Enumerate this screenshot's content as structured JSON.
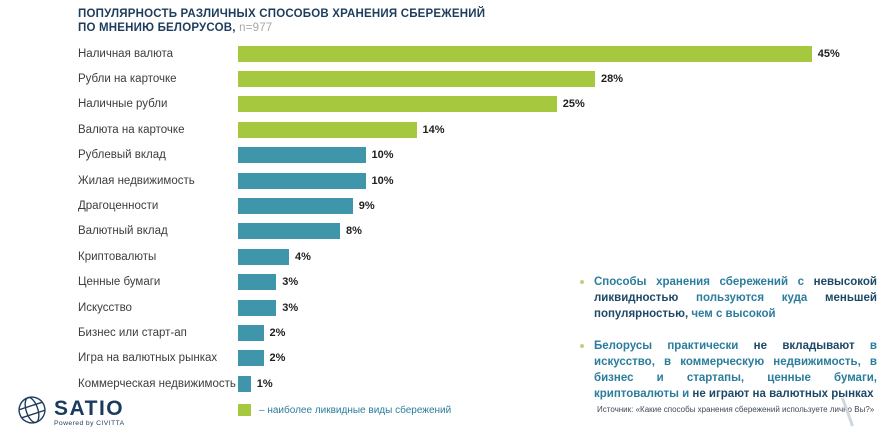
{
  "title": {
    "line1": "ПОПУЛЯРНОСТЬ РАЗЛИЧНЫХ СПОСОБОВ ХРАНЕНИЯ СБЕРЕЖЕНИЙ",
    "line2": "ПО МНЕНИЮ БЕЛОРУСОВ,",
    "sample": "n=977"
  },
  "chart_data": {
    "type": "bar",
    "orientation": "horizontal",
    "categories": [
      "Наличная валюта",
      "Рубли на карточке",
      "Наличные рубли",
      "Валюта на карточке",
      "Рублевый вклад",
      "Жилая недвижимость",
      "Драгоценности",
      "Валютный вклад",
      "Криптовалюты",
      "Ценные бумаги",
      "Искусство",
      "Бизнес или старт-ап",
      "Игра на валютных рынках",
      "Коммерческая недвижимость"
    ],
    "values": [
      45,
      28,
      25,
      14,
      10,
      10,
      9,
      8,
      4,
      3,
      3,
      2,
      2,
      1
    ],
    "value_suffix": "%",
    "xlim": [
      0,
      50
    ],
    "grid": false,
    "highlight_count": 4,
    "highlight_color": "#a6c83e",
    "base_color": "#3f96ab",
    "legend": "– наиболее ликвидные виды сбережений",
    "legend_position": "bottom-left"
  },
  "insights": [
    {
      "runs": [
        {
          "text": "Способы хранения сбережений с ",
          "emph": false
        },
        {
          "text": "невысокой ликвидностью",
          "emph": true
        },
        {
          "text": " пользуются куда ",
          "emph": false
        },
        {
          "text": "меньшей популярностью,",
          "emph": true
        },
        {
          "text": " чем с высокой",
          "emph": false
        }
      ]
    },
    {
      "runs": [
        {
          "text": "Белорусы практически ",
          "emph": false
        },
        {
          "text": "не вкладывают",
          "emph": true
        },
        {
          "text": " в искусство, в коммерческую недвижимость, в бизнес и стартапы, ценные бумаги, криптовалюты и ",
          "emph": false
        },
        {
          "text": "не играют на валютных рынках",
          "emph": true
        }
      ]
    }
  ],
  "source": "Источник: «Какие способы хранения сбережений используете лично Вы?»",
  "logo": {
    "name": "SATIO",
    "tagline": "Powered by CIVITTA"
  }
}
